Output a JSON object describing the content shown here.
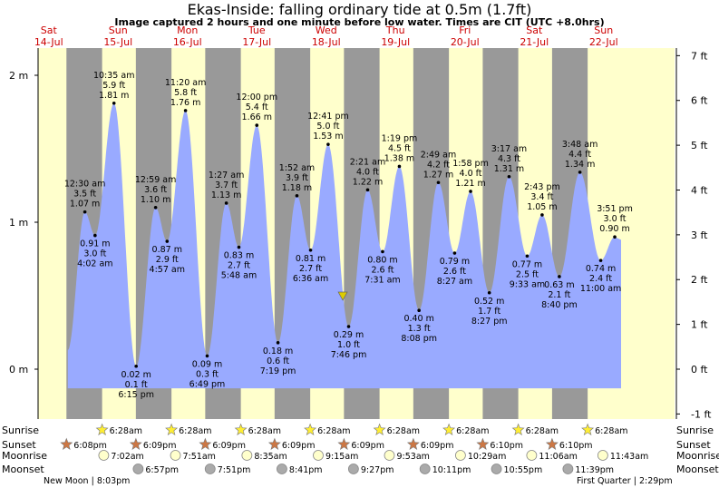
{
  "title": "Ekas-Inside: falling  ordinary tide at 0.5m (1.7ft)",
  "subtitle": "Image captured 2 hours and one minute before low water. Times are CIT (UTC +8.0hrs)",
  "colors": {
    "day": "#ffffcc",
    "night": "#999999",
    "tide_fill": "#99aaff",
    "day_label": "#cc0000",
    "sun_icon": "#ffee33",
    "sunset_icon": "#cc7744",
    "moonrise_icon": "#ffffcc",
    "moonset_icon": "#aaaaaa",
    "now_marker": "#ddcc00"
  },
  "chart_data": {
    "type": "area",
    "ylabel_left_unit": "m",
    "ylabel_right_unit": "ft",
    "ylim_m": [
      -0.22,
      2.12
    ],
    "left_ticks": [
      "0 m",
      "1 m",
      "2 m"
    ],
    "left_tick_values": [
      0,
      1,
      2
    ],
    "right_ticks": [
      "-1 ft",
      "0 ft",
      "1 ft",
      "2 ft",
      "3 ft",
      "4 ft",
      "5 ft",
      "6 ft",
      "7 ft"
    ],
    "right_tick_values": [
      -1,
      0,
      1,
      2,
      3,
      4,
      5,
      6,
      7
    ],
    "days": [
      {
        "dow": "Sat",
        "date": "14-Jul"
      },
      {
        "dow": "Sun",
        "date": "15-Jul"
      },
      {
        "dow": "Mon",
        "date": "16-Jul"
      },
      {
        "dow": "Tue",
        "date": "17-Jul"
      },
      {
        "dow": "Wed",
        "date": "18-Jul"
      },
      {
        "dow": "Thu",
        "date": "19-Jul"
      },
      {
        "dow": "Fri",
        "date": "20-Jul"
      },
      {
        "dow": "Sat",
        "date": "21-Jul"
      },
      {
        "dow": "Sun",
        "date": "22-Jul"
      }
    ],
    "tide_points": [
      {
        "day": 1,
        "hour": 0.5,
        "m": 1.07,
        "time": "12:30 am",
        "ft": "3.5 ft",
        "m_label": "1.07 m",
        "type": "high"
      },
      {
        "day": 1,
        "hour": 4.03,
        "m": 0.91,
        "time": "4:02 am",
        "ft": "3.0 ft",
        "m_label": "0.91 m",
        "type": "low"
      },
      {
        "day": 1,
        "hour": 10.58,
        "m": 1.81,
        "time": "10:35 am",
        "ft": "5.9 ft",
        "m_label": "1.81 m",
        "type": "high"
      },
      {
        "day": 1,
        "hour": 18.25,
        "m": 0.02,
        "time": "6:15 pm",
        "ft": "0.1 ft",
        "m_label": "0.02 m",
        "type": "low"
      },
      {
        "day": 2,
        "hour": 0.98,
        "m": 1.1,
        "time": "12:59 am",
        "ft": "3.6 ft",
        "m_label": "1.10 m",
        "type": "high"
      },
      {
        "day": 2,
        "hour": 4.95,
        "m": 0.87,
        "time": "4:57 am",
        "ft": "2.9 ft",
        "m_label": "0.87 m",
        "type": "low"
      },
      {
        "day": 2,
        "hour": 11.33,
        "m": 1.76,
        "time": "11:20 am",
        "ft": "5.8 ft",
        "m_label": "1.76 m",
        "type": "high"
      },
      {
        "day": 2,
        "hour": 18.82,
        "m": 0.09,
        "time": "6:49 pm",
        "ft": "0.3 ft",
        "m_label": "0.09 m",
        "type": "low"
      },
      {
        "day": 3,
        "hour": 1.45,
        "m": 1.13,
        "time": "1:27 am",
        "ft": "3.7 ft",
        "m_label": "1.13 m",
        "type": "high"
      },
      {
        "day": 3,
        "hour": 5.8,
        "m": 0.83,
        "time": "5:48 am",
        "ft": "2.7 ft",
        "m_label": "0.83 m",
        "type": "low"
      },
      {
        "day": 3,
        "hour": 12.0,
        "m": 1.66,
        "time": "12:00 pm",
        "ft": "5.4 ft",
        "m_label": "1.66 m",
        "type": "high"
      },
      {
        "day": 3,
        "hour": 19.32,
        "m": 0.18,
        "time": "7:19 pm",
        "ft": "0.6 ft",
        "m_label": "0.18 m",
        "type": "low"
      },
      {
        "day": 4,
        "hour": 1.87,
        "m": 1.18,
        "time": "1:52 am",
        "ft": "3.9 ft",
        "m_label": "1.18 m",
        "type": "high"
      },
      {
        "day": 4,
        "hour": 6.6,
        "m": 0.81,
        "time": "6:36 am",
        "ft": "2.7 ft",
        "m_label": "0.81 m",
        "type": "low"
      },
      {
        "day": 4,
        "hour": 12.68,
        "m": 1.53,
        "time": "12:41 pm",
        "ft": "5.0 ft",
        "m_label": "1.53 m",
        "type": "high"
      },
      {
        "day": 4,
        "hour": 19.77,
        "m": 0.29,
        "time": "7:46 pm",
        "ft": "1.0 ft",
        "m_label": "0.29 m",
        "type": "low"
      },
      {
        "day": 5,
        "hour": 2.35,
        "m": 1.22,
        "time": "2:21 am",
        "ft": "4.0 ft",
        "m_label": "1.22 m",
        "type": "high"
      },
      {
        "day": 5,
        "hour": 7.52,
        "m": 0.8,
        "time": "7:31 am",
        "ft": "2.6 ft",
        "m_label": "0.80 m",
        "type": "low"
      },
      {
        "day": 5,
        "hour": 13.32,
        "m": 1.38,
        "time": "1:19 pm",
        "ft": "4.5 ft",
        "m_label": "1.38 m",
        "type": "high"
      },
      {
        "day": 5,
        "hour": 20.13,
        "m": 0.4,
        "time": "8:08 pm",
        "ft": "1.3 ft",
        "m_label": "0.40 m",
        "type": "low"
      },
      {
        "day": 6,
        "hour": 2.82,
        "m": 1.27,
        "time": "2:49 am",
        "ft": "4.2 ft",
        "m_label": "1.27 m",
        "type": "high"
      },
      {
        "day": 6,
        "hour": 8.45,
        "m": 0.79,
        "time": "8:27 am",
        "ft": "2.6 ft",
        "m_label": "0.79 m",
        "type": "low"
      },
      {
        "day": 6,
        "hour": 13.97,
        "m": 1.21,
        "time": "1:58 pm",
        "ft": "4.0 ft",
        "m_label": "1.21 m",
        "type": "high"
      },
      {
        "day": 6,
        "hour": 20.45,
        "m": 0.52,
        "time": "8:27 pm",
        "ft": "1.7 ft",
        "m_label": "0.52 m",
        "type": "low"
      },
      {
        "day": 7,
        "hour": 3.28,
        "m": 1.31,
        "time": "3:17 am",
        "ft": "4.3 ft",
        "m_label": "1.31 m",
        "type": "high"
      },
      {
        "day": 7,
        "hour": 9.55,
        "m": 0.77,
        "time": "9:33 am",
        "ft": "2.5 ft",
        "m_label": "0.77 m",
        "type": "low"
      },
      {
        "day": 7,
        "hour": 14.72,
        "m": 1.05,
        "time": "2:43 pm",
        "ft": "3.4 ft",
        "m_label": "1.05 m",
        "type": "high"
      },
      {
        "day": 7,
        "hour": 20.67,
        "m": 0.63,
        "time": "8:40 pm",
        "ft": "2.1 ft",
        "m_label": "0.63 m",
        "type": "low"
      },
      {
        "day": 8,
        "hour": 3.8,
        "m": 1.34,
        "time": "3:48 am",
        "ft": "4.4 ft",
        "m_label": "1.34 m",
        "type": "high"
      },
      {
        "day": 8,
        "hour": 11.0,
        "m": 0.74,
        "time": "11:00 am",
        "ft": "2.4 ft",
        "m_label": "0.74 m",
        "type": "low"
      },
      {
        "day": 8,
        "hour": 15.85,
        "m": 0.9,
        "time": "3:51 pm",
        "ft": "3.0 ft",
        "m_label": "0.90 m",
        "type": "high"
      }
    ],
    "now_marker": {
      "day": 4,
      "hour": 17.75
    },
    "sun": {
      "sunrise": "6:28am",
      "sunset": "6:09pm"
    },
    "sunrise_events": [
      {
        "day": 1,
        "hour": 6.47,
        "label": "6:28am"
      },
      {
        "day": 2,
        "hour": 6.47,
        "label": "6:28am"
      },
      {
        "day": 3,
        "hour": 6.47,
        "label": "6:28am"
      },
      {
        "day": 4,
        "hour": 6.47,
        "label": "6:28am"
      },
      {
        "day": 5,
        "hour": 6.47,
        "label": "6:28am"
      },
      {
        "day": 6,
        "hour": 6.47,
        "label": "6:28am"
      },
      {
        "day": 7,
        "hour": 6.47,
        "label": "6:28am"
      },
      {
        "day": 8,
        "hour": 6.47,
        "label": "6:28am"
      }
    ],
    "sunset_events": [
      {
        "day": 0,
        "hour": 18.13,
        "label": "6:08pm"
      },
      {
        "day": 1,
        "hour": 18.15,
        "label": "6:09pm"
      },
      {
        "day": 2,
        "hour": 18.15,
        "label": "6:09pm"
      },
      {
        "day": 3,
        "hour": 18.15,
        "label": "6:09pm"
      },
      {
        "day": 4,
        "hour": 18.15,
        "label": "6:09pm"
      },
      {
        "day": 5,
        "hour": 18.15,
        "label": "6:09pm"
      },
      {
        "day": 6,
        "hour": 18.17,
        "label": "6:10pm"
      },
      {
        "day": 7,
        "hour": 18.17,
        "label": "6:10pm"
      }
    ],
    "moonrise_events": [
      {
        "day": 1,
        "hour": 7.03,
        "label": "7:02am"
      },
      {
        "day": 2,
        "hour": 7.85,
        "label": "7:51am"
      },
      {
        "day": 3,
        "hour": 8.58,
        "label": "8:35am"
      },
      {
        "day": 4,
        "hour": 9.25,
        "label": "9:15am"
      },
      {
        "day": 5,
        "hour": 9.88,
        "label": "9:53am"
      },
      {
        "day": 6,
        "hour": 10.48,
        "label": "10:29am"
      },
      {
        "day": 7,
        "hour": 11.1,
        "label": "11:06am"
      },
      {
        "day": 8,
        "hour": 11.72,
        "label": "11:43am"
      }
    ],
    "moonset_events": [
      {
        "day": 1,
        "hour": 18.95,
        "label": "6:57pm"
      },
      {
        "day": 2,
        "hour": 19.85,
        "label": "7:51pm"
      },
      {
        "day": 3,
        "hour": 20.68,
        "label": "8:41pm"
      },
      {
        "day": 4,
        "hour": 21.45,
        "label": "9:27pm"
      },
      {
        "day": 5,
        "hour": 22.18,
        "label": "10:11pm"
      },
      {
        "day": 6,
        "hour": 22.92,
        "label": "10:55pm"
      },
      {
        "day": 7,
        "hour": 23.65,
        "label": "11:39pm"
      }
    ],
    "row_labels": {
      "sunrise": "Sunrise",
      "sunset": "Sunset",
      "moonrise": "Moonrise",
      "moonset": "Moonset"
    },
    "moon_phases": {
      "new": "New Moon | 8:03pm",
      "first_quarter": "First Quarter | 2:29pm"
    }
  }
}
